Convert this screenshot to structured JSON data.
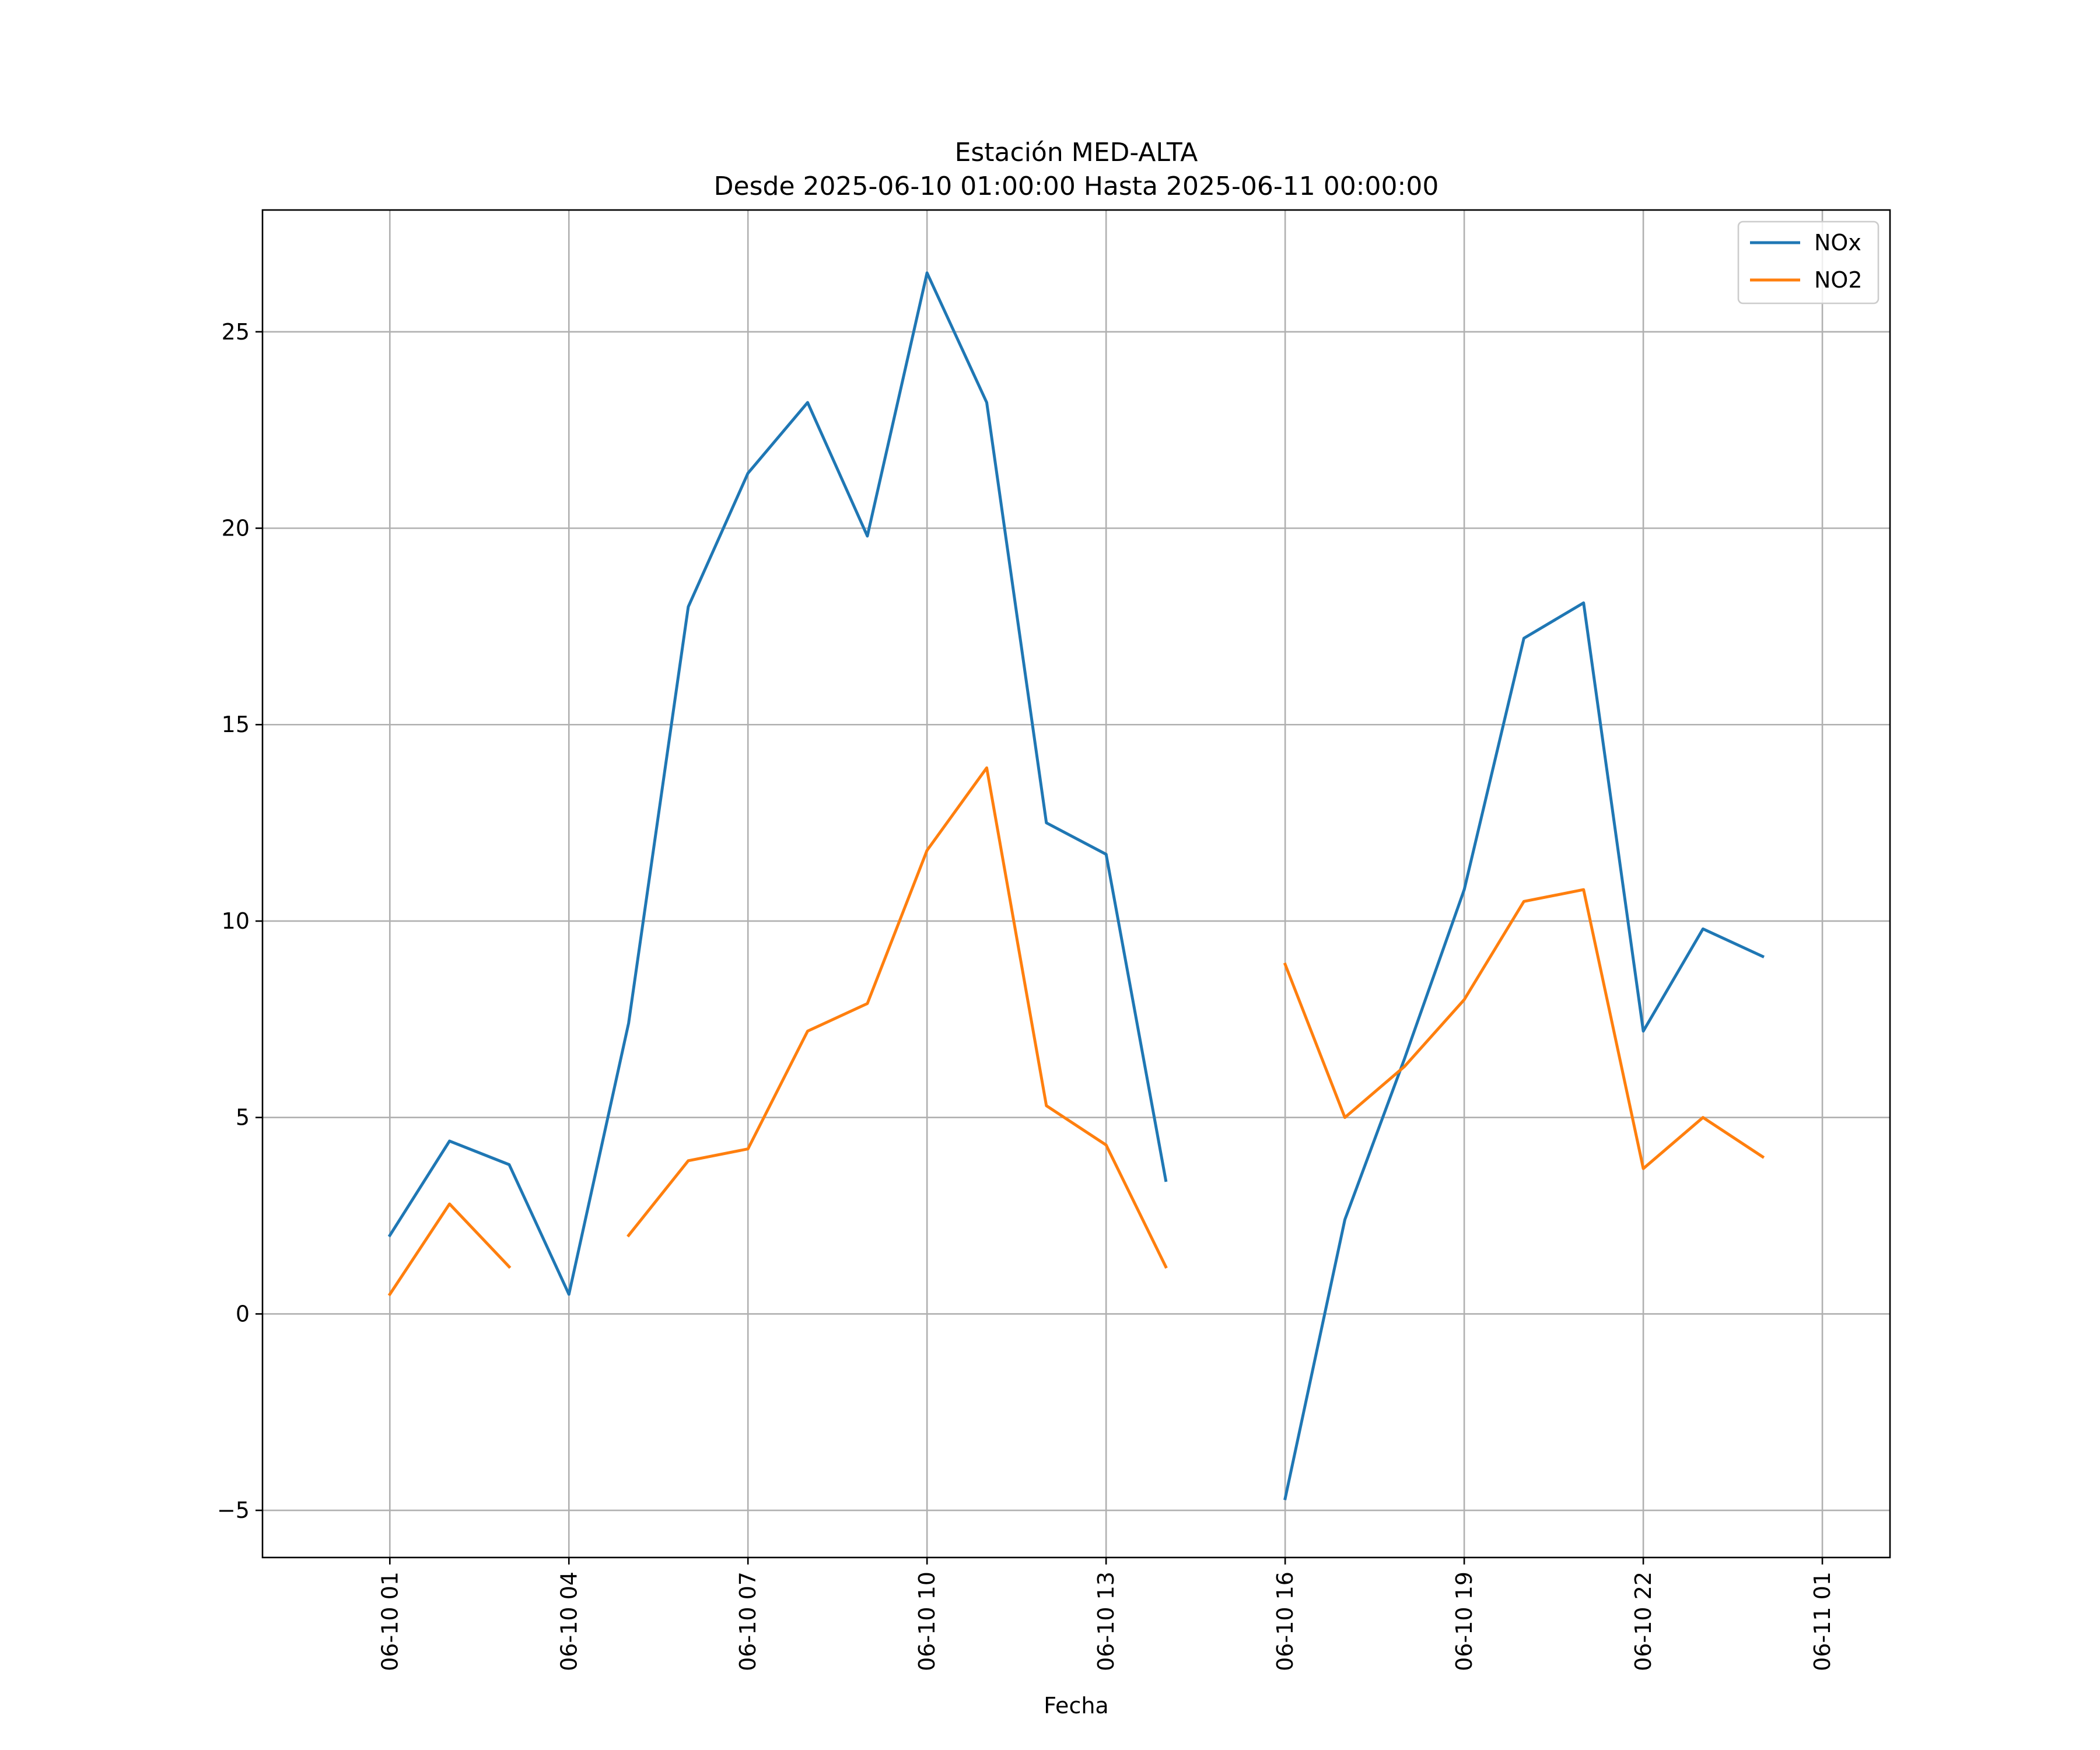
{
  "chart_data": {
    "type": "line",
    "title": "Estación MED-ALTA",
    "subtitle": "Desde 2025-06-10 01:00:00 Hasta 2025-06-11 00:00:00",
    "xlabel": "Fecha",
    "ylabel": "",
    "x": [
      "2025-06-10 01:00",
      "2025-06-10 02:00",
      "2025-06-10 03:00",
      "2025-06-10 04:00",
      "2025-06-10 05:00",
      "2025-06-10 06:00",
      "2025-06-10 07:00",
      "2025-06-10 08:00",
      "2025-06-10 09:00",
      "2025-06-10 10:00",
      "2025-06-10 11:00",
      "2025-06-10 12:00",
      "2025-06-10 13:00",
      "2025-06-10 14:00",
      "2025-06-10 15:00",
      "2025-06-10 16:00",
      "2025-06-10 17:00",
      "2025-06-10 18:00",
      "2025-06-10 19:00",
      "2025-06-10 20:00",
      "2025-06-10 21:00",
      "2025-06-10 22:00",
      "2025-06-10 23:00",
      "2025-06-11 00:00"
    ],
    "x_ticks": [
      "06-10 01",
      "06-10 04",
      "06-10 07",
      "06-10 10",
      "06-10 13",
      "06-10 16",
      "06-10 19",
      "06-10 22",
      "06-11 01"
    ],
    "y_ticks": [
      -5,
      0,
      5,
      10,
      15,
      20,
      25
    ],
    "xlim": [
      "2025-06-09 22:52",
      "2025-06-11 02:08"
    ],
    "ylim": [
      -6.2,
      28.1
    ],
    "grid": true,
    "legend_position": "upper right",
    "series": [
      {
        "name": "NOx",
        "color": "#1f77b4",
        "values": [
          2.0,
          4.4,
          3.8,
          0.5,
          7.4,
          18.0,
          21.4,
          23.2,
          19.8,
          26.5,
          23.2,
          12.5,
          11.7,
          3.4,
          null,
          -4.7,
          2.4,
          6.5,
          10.8,
          17.2,
          18.1,
          7.2,
          9.8,
          9.1
        ]
      },
      {
        "name": "NO2",
        "color": "#ff7f0e",
        "values": [
          0.5,
          2.8,
          1.2,
          null,
          2.0,
          3.9,
          4.2,
          7.2,
          7.9,
          11.8,
          13.9,
          5.3,
          4.3,
          1.2,
          null,
          8.9,
          5.0,
          6.3,
          8.0,
          10.5,
          10.8,
          3.7,
          5.0,
          4.0
        ]
      }
    ]
  }
}
